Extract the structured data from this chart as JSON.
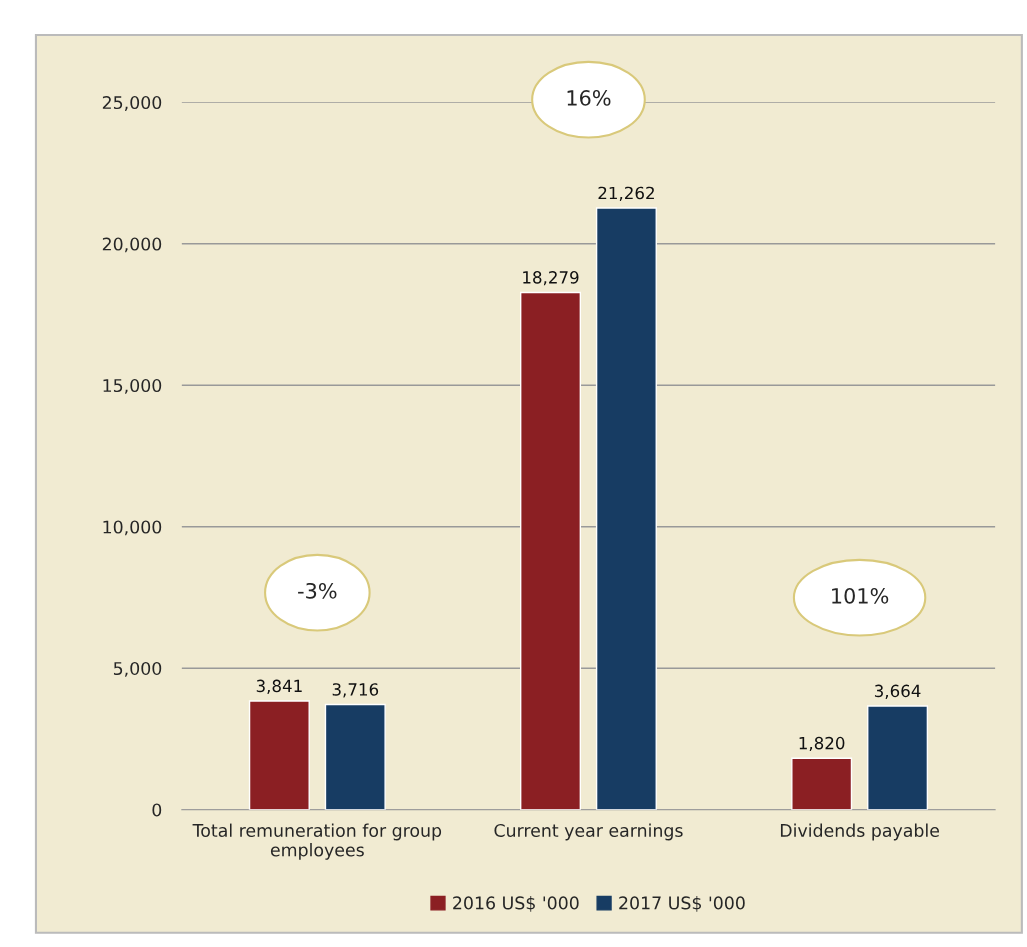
{
  "chart_data": {
    "type": "bar",
    "categories": [
      "Total remuneration for group\nemployees",
      "Current year earnings",
      "Dividends payable"
    ],
    "series": [
      {
        "name": "2016 US$ '000",
        "color": "#8b1f23",
        "values": [
          3841,
          18279,
          1820
        ]
      },
      {
        "name": "2017 US$ '000",
        "color": "#173c63",
        "values": [
          3716,
          21262,
          3664
        ]
      }
    ],
    "ylim": [
      0,
      25000
    ],
    "yticks": [
      0,
      {
        "value": 5000,
        "label": "5,000"
      },
      {
        "value": 10000,
        "label": "10,000"
      },
      {
        "value": 15000,
        "label": "15,000"
      },
      {
        "value": 20000,
        "label": "20,000"
      },
      {
        "value": 25000,
        "label": "25,000"
      }
    ],
    "value_labels": [
      [
        "3,841",
        "18,279",
        "1,820"
      ],
      [
        "3,716",
        "21,262",
        "3,664"
      ]
    ],
    "annotations": [
      "-3%",
      "16%",
      "101%"
    ],
    "grid": "y",
    "legend": "bottom"
  }
}
